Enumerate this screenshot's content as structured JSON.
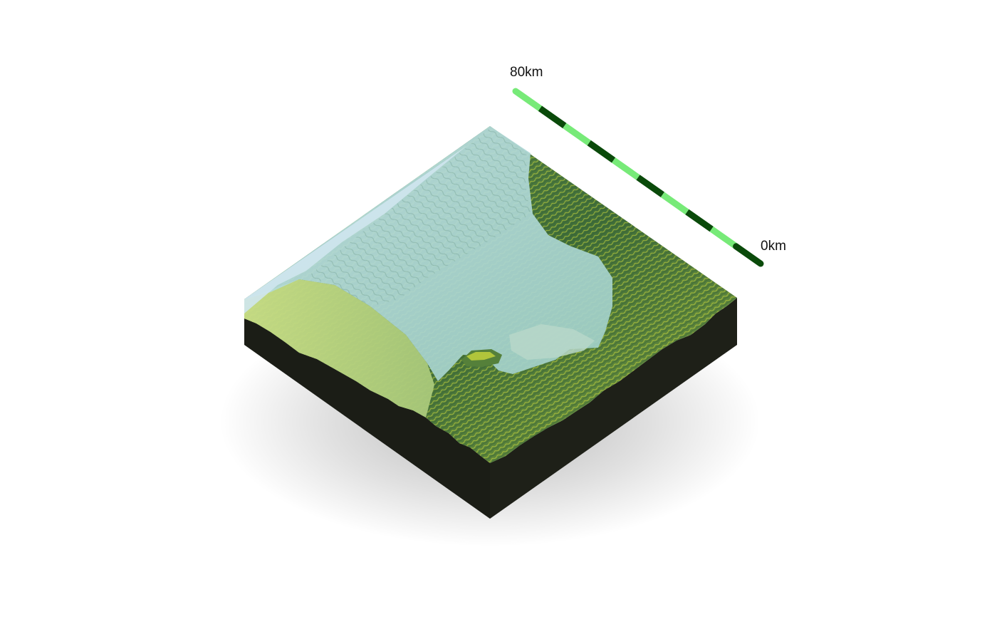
{
  "scale_bar": {
    "start_label": "80km",
    "end_label": "0km",
    "segments": 10,
    "color_light": "#77ea78",
    "color_dark": "#0a4a0a"
  },
  "terrain": {
    "water_color": "#a9d3dc",
    "lowland_color": "#d6e48a",
    "forest_color": "#4e7c3c",
    "ridge_highlight_color": "#e3e83a",
    "base_color": "#1b1d16"
  }
}
